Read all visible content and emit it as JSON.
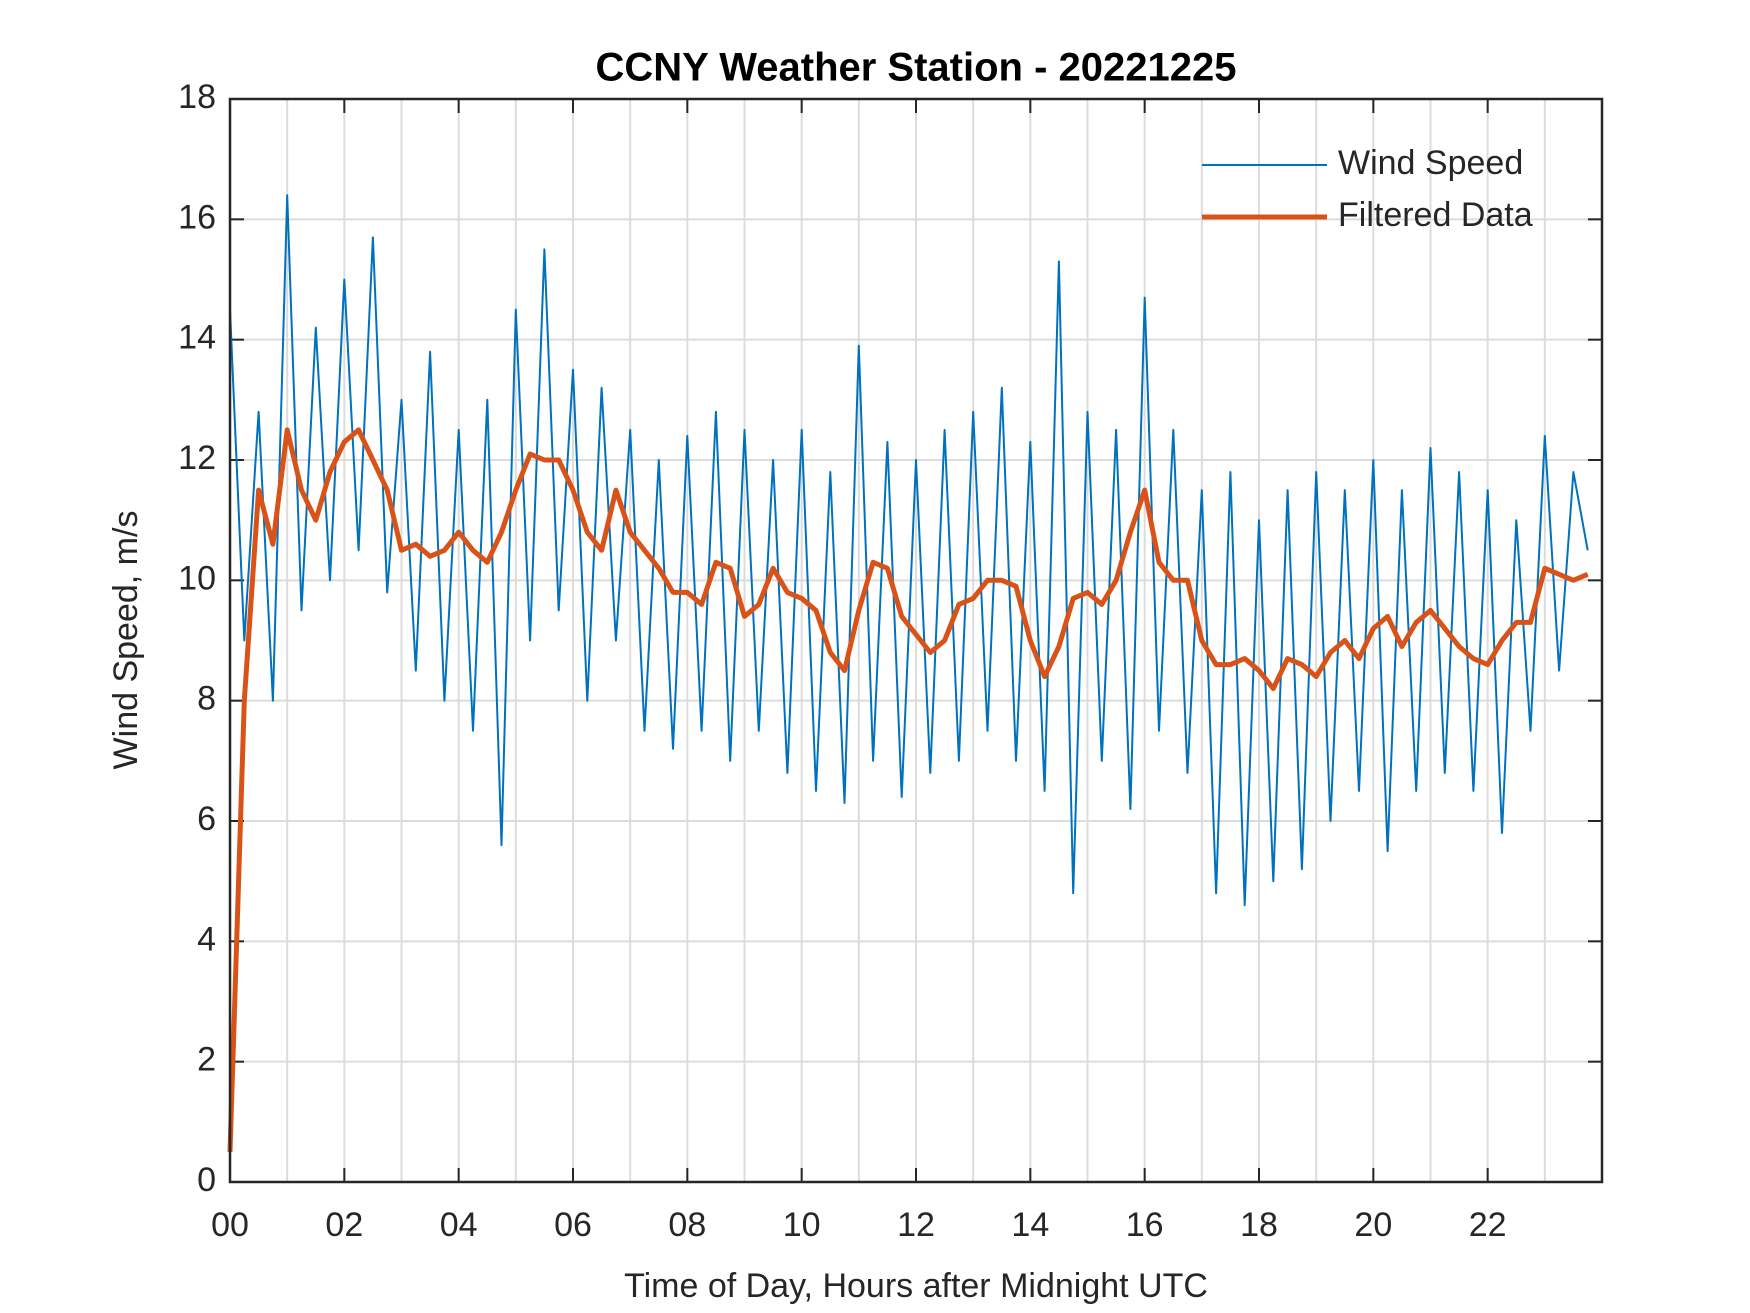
{
  "chart_data": {
    "type": "line",
    "title": "CCNY Weather Station - 20221225",
    "xlabel": "Time of Day, Hours after Midnight UTC",
    "ylabel": "Wind Speed, m/s",
    "xlim": [
      0,
      24
    ],
    "ylim": [
      0,
      18
    ],
    "xticks": [
      {
        "value": 0,
        "label": "00"
      },
      {
        "value": 2,
        "label": "02"
      },
      {
        "value": 4,
        "label": "04"
      },
      {
        "value": 6,
        "label": "06"
      },
      {
        "value": 8,
        "label": "08"
      },
      10,
      12,
      14,
      16,
      18,
      20,
      22
    ],
    "yticks": [
      0,
      2,
      4,
      6,
      8,
      10,
      12,
      14,
      16,
      18
    ],
    "grid": true,
    "minor_grid": true,
    "legend_position": "upper-right",
    "x": [
      0,
      0.25,
      0.5,
      0.75,
      1,
      1.25,
      1.5,
      1.75,
      2,
      2.25,
      2.5,
      2.75,
      3,
      3.25,
      3.5,
      3.75,
      4,
      4.25,
      4.5,
      4.75,
      5,
      5.25,
      5.5,
      5.75,
      6,
      6.25,
      6.5,
      6.75,
      7,
      7.25,
      7.5,
      7.75,
      8,
      8.25,
      8.5,
      8.75,
      9,
      9.25,
      9.5,
      9.75,
      10,
      10.25,
      10.5,
      10.75,
      11,
      11.25,
      11.5,
      11.75,
      12,
      12.25,
      12.5,
      12.75,
      13,
      13.25,
      13.5,
      13.75,
      14,
      14.25,
      14.5,
      14.75,
      15,
      15.25,
      15.5,
      15.75,
      16,
      16.25,
      16.5,
      16.75,
      17,
      17.25,
      17.5,
      17.75,
      18,
      18.25,
      18.5,
      18.75,
      19,
      19.25,
      19.5,
      19.75,
      20,
      20.25,
      20.5,
      20.75,
      21,
      21.25,
      21.5,
      21.75,
      22,
      22.25,
      22.5,
      22.75,
      23,
      23.25,
      23.5,
      23.75
    ],
    "series": [
      {
        "name": "Wind Speed",
        "color": "#0072BD",
        "width": 2,
        "values": [
          14.5,
          9,
          12.8,
          8,
          16.4,
          9.5,
          14.2,
          10,
          15,
          10.5,
          15.7,
          9.8,
          13,
          8.5,
          13.8,
          8,
          12.5,
          7.5,
          13,
          5.6,
          14.5,
          9,
          15.5,
          9.5,
          13.5,
          8,
          13.2,
          9,
          12.5,
          7.5,
          12,
          7.2,
          12.4,
          7.5,
          12.8,
          7,
          12.5,
          7.5,
          12,
          6.8,
          12.5,
          6.5,
          11.8,
          6.3,
          13.9,
          7,
          12.3,
          6.4,
          12,
          6.8,
          12.5,
          7,
          12.8,
          7.5,
          13.2,
          7,
          12.3,
          6.5,
          15.3,
          4.8,
          12.8,
          7,
          12.5,
          6.2,
          14.7,
          7.5,
          12.5,
          6.8,
          11.5,
          4.8,
          11.8,
          4.6,
          11,
          5,
          11.5,
          5.2,
          11.8,
          6,
          11.5,
          6.5,
          12,
          5.5,
          11.5,
          6.5,
          12.2,
          6.8,
          11.8,
          6.5,
          11.5,
          5.8,
          11,
          7.5,
          12.4,
          8.5,
          11.8,
          10.5
        ]
      },
      {
        "name": "Filtered Data",
        "color": "#D95319",
        "width": 5,
        "values": [
          0.5,
          8,
          11.5,
          10.6,
          12.5,
          11.5,
          11,
          11.8,
          12.3,
          12.5,
          12,
          11.5,
          10.5,
          10.6,
          10.4,
          10.5,
          10.8,
          10.5,
          10.3,
          10.8,
          11.5,
          12.1,
          12,
          12,
          11.5,
          10.8,
          10.5,
          11.5,
          10.8,
          10.5,
          10.2,
          9.8,
          9.8,
          9.6,
          10.3,
          10.2,
          9.4,
          9.6,
          10.2,
          9.8,
          9.7,
          9.5,
          8.8,
          8.5,
          9.5,
          10.3,
          10.2,
          9.4,
          9.1,
          8.8,
          9,
          9.6,
          9.7,
          10,
          10,
          9.9,
          9,
          8.4,
          8.9,
          9.7,
          9.8,
          9.6,
          10,
          10.8,
          11.5,
          10.3,
          10,
          10,
          9,
          8.6,
          8.6,
          8.7,
          8.5,
          8.2,
          8.7,
          8.6,
          8.4,
          8.8,
          9,
          8.7,
          9.2,
          9.4,
          8.9,
          9.3,
          9.5,
          9.2,
          8.9,
          8.7,
          8.6,
          9,
          9.3,
          9.3,
          10.2,
          10.1,
          10,
          10.1
        ]
      }
    ]
  }
}
